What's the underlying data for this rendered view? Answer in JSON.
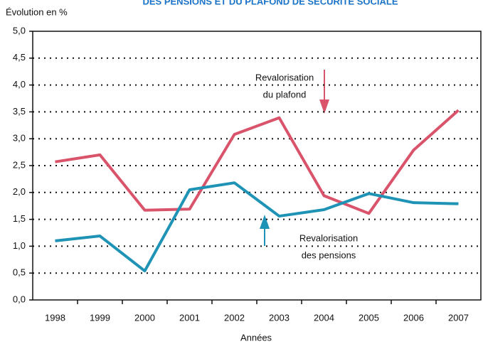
{
  "chart_data": {
    "type": "line",
    "title": "DES PENSIONS ET DU PLAFOND DE SÉCURITÉ SOCIALE",
    "y_label": "Évolution en %",
    "x_label": "Années",
    "categories": [
      "1998",
      "1999",
      "2000",
      "2001",
      "2002",
      "2003",
      "2004",
      "2005",
      "2006",
      "2007"
    ],
    "series": [
      {
        "name": "Revalorisation du plafond",
        "color": "#d9546b",
        "values": [
          2.57,
          2.7,
          1.67,
          1.69,
          3.08,
          3.39,
          1.94,
          1.61,
          2.79,
          3.53
        ]
      },
      {
        "name": "Revalorisation des pensions",
        "color": "#1f93b5",
        "values": [
          1.1,
          1.19,
          0.54,
          2.05,
          2.18,
          1.56,
          1.68,
          1.98,
          1.81,
          1.79
        ]
      }
    ],
    "annotations": [
      [
        "Revalorisation",
        "du plafond"
      ],
      [
        "Revalorisation",
        "des pensions"
      ]
    ],
    "ylim": [
      0,
      5
    ],
    "yticks": [
      {
        "value": 0,
        "label": "0,0"
      },
      {
        "value": 0.5,
        "label": "0,5"
      },
      {
        "value": 1,
        "label": "1,0"
      },
      {
        "value": 1.5,
        "label": "1,5"
      },
      {
        "value": 2,
        "label": "2,0"
      },
      {
        "value": 2.5,
        "label": "2,5"
      },
      {
        "value": 3,
        "label": "3,0"
      },
      {
        "value": 3.5,
        "label": "3,5"
      },
      {
        "value": 4,
        "label": "4,0"
      },
      {
        "value": 4.5,
        "label": "4,5"
      },
      {
        "value": 5,
        "label": "5,0"
      }
    ],
    "grid": true
  }
}
